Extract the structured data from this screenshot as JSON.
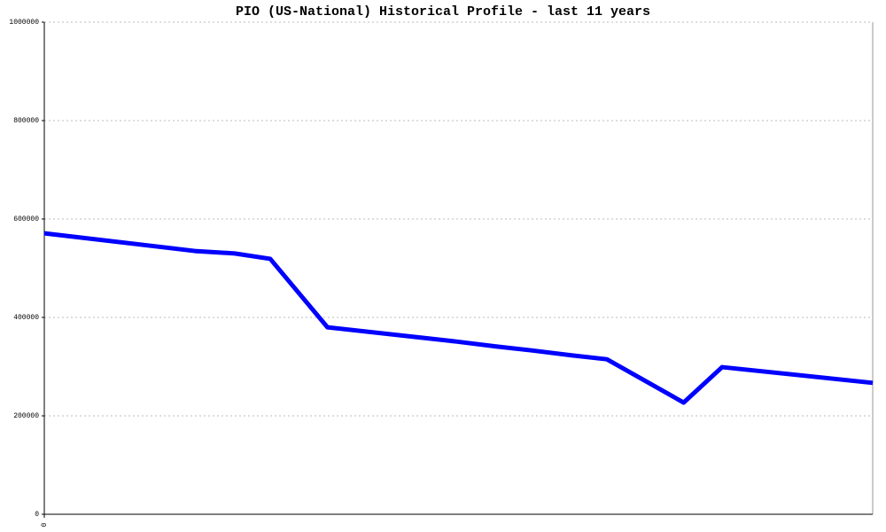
{
  "chart_data": {
    "type": "line",
    "title": "PIO (US-National) Historical Profile - last 11 years",
    "x": [
      0,
      2.0,
      2.53,
      3.0,
      3.76,
      5.0,
      5.47,
      6.0,
      6.47,
      7.0,
      7.47,
      8.49,
      9.0,
      11
    ],
    "series": [
      {
        "color": "#0000ff",
        "values": [
          571000,
          535000,
          530000,
          519000,
          380000,
          359000,
          351000,
          341000,
          333000,
          323000,
          315000,
          227000,
          299000,
          267000
        ]
      }
    ],
    "xlim": [
      0,
      11
    ],
    "xticks": [
      0
    ],
    "ylim": [
      0,
      1000000
    ],
    "yticks": [
      0,
      200000,
      400000,
      600000,
      800000,
      1000000
    ],
    "grid": true
  }
}
